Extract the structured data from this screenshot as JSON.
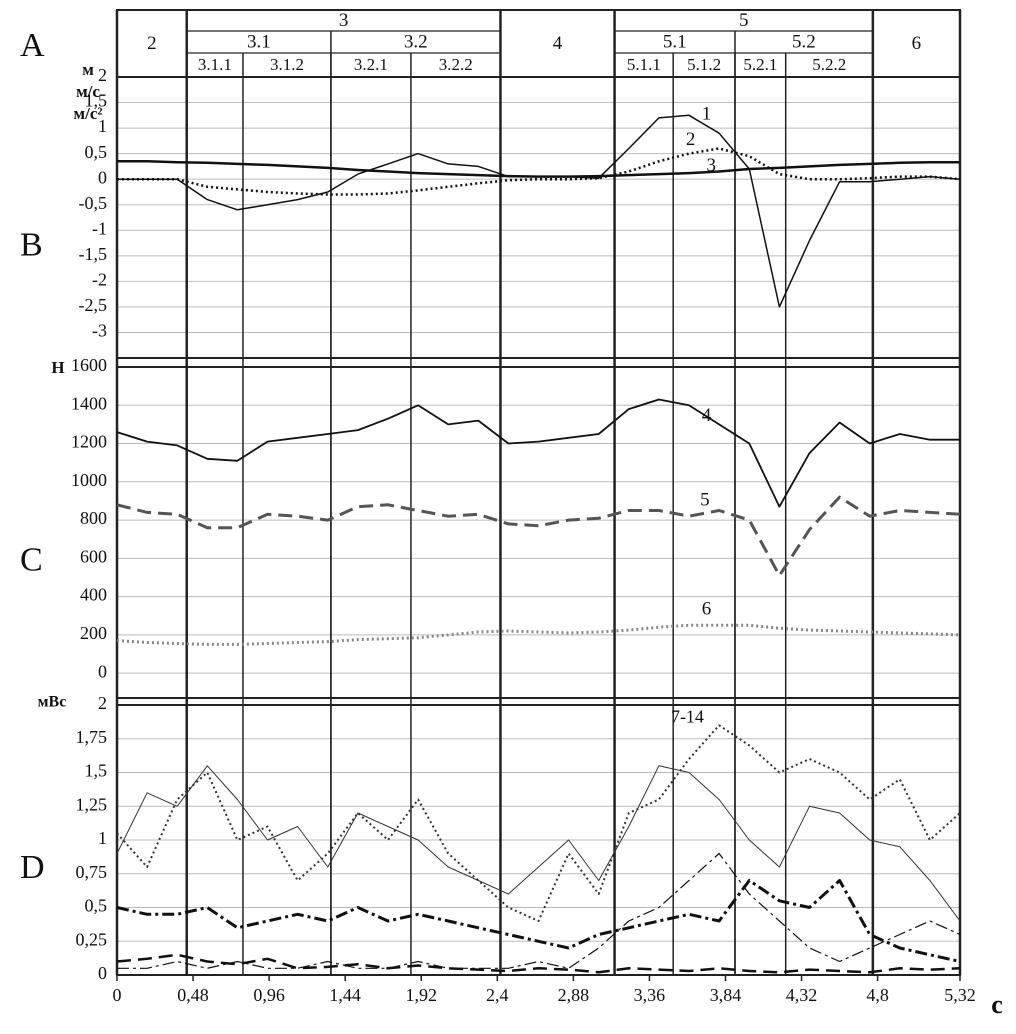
{
  "header": {
    "panel": "A",
    "phases": [
      {
        "label": "2",
        "start": 0,
        "end": 0.44
      },
      {
        "label": "3",
        "start": 0.44,
        "end": 2.42,
        "children": [
          {
            "label": "3.1",
            "start": 0.44,
            "end": 1.35,
            "children": [
              {
                "label": "3.1.1",
                "start": 0.44,
                "end": 0.795
              },
              {
                "label": "3.1.2",
                "start": 0.795,
                "end": 1.35
              }
            ]
          },
          {
            "label": "3.2",
            "start": 1.35,
            "end": 2.42,
            "children": [
              {
                "label": "3.2.1",
                "start": 1.35,
                "end": 1.855
              },
              {
                "label": "3.2.2",
                "start": 1.855,
                "end": 2.42
              }
            ]
          }
        ]
      },
      {
        "label": "4",
        "start": 2.42,
        "end": 3.14
      },
      {
        "label": "5",
        "start": 3.14,
        "end": 4.77,
        "children": [
          {
            "label": "5.1",
            "start": 3.14,
            "end": 3.9,
            "children": [
              {
                "label": "5.1.1",
                "start": 3.14,
                "end": 3.51
              },
              {
                "label": "5.1.2",
                "start": 3.51,
                "end": 3.9
              }
            ]
          },
          {
            "label": "5.2",
            "start": 3.9,
            "end": 4.77,
            "children": [
              {
                "label": "5.2.1",
                "start": 3.9,
                "end": 4.22
              },
              {
                "label": "5.2.2",
                "start": 4.22,
                "end": 4.77
              }
            ]
          }
        ]
      },
      {
        "label": "6",
        "start": 4.77,
        "end": 5.32
      }
    ]
  },
  "chart_data": [
    {
      "type": "line",
      "panel": "B",
      "ylabel": [
        "м",
        "м/с",
        "м/с²"
      ],
      "xlim": [
        0,
        5.32
      ],
      "ylim": [
        -3.5,
        2
      ],
      "grid": true,
      "yticks": [
        {
          "value": -3,
          "label": "-3"
        },
        {
          "value": -2.5,
          "label": "-2,5"
        },
        {
          "value": -2,
          "label": "-2"
        },
        {
          "value": -1.5,
          "label": "-1,5"
        },
        {
          "value": -1,
          "label": "-1"
        },
        {
          "value": -0.5,
          "label": "-0,5"
        },
        0,
        {
          "value": 0.5,
          "label": "0,5"
        },
        1,
        {
          "value": 1.5,
          "label": "1,5"
        },
        2
      ],
      "x": [
        0,
        0.19,
        0.38,
        0.57,
        0.76,
        0.95,
        1.14,
        1.33,
        1.52,
        1.71,
        1.9,
        2.09,
        2.28,
        2.47,
        2.66,
        2.85,
        3.04,
        3.23,
        3.42,
        3.61,
        3.8,
        3.99,
        4.18,
        4.37,
        4.56,
        4.75,
        4.94,
        5.13,
        5.32
      ],
      "series": [
        {
          "name": "1",
          "color": "#111111",
          "style": "solid",
          "width": 1.5,
          "label_at": [
            3.72,
            1.25
          ],
          "values": [
            0,
            0,
            0,
            -0.4,
            -0.6,
            -0.5,
            -0.4,
            -0.25,
            0.1,
            0.3,
            0.5,
            0.3,
            0.25,
            0.05,
            0.05,
            0.05,
            0.02,
            0.6,
            1.2,
            1.25,
            0.9,
            0.2,
            -2.5,
            -1.2,
            -0.05,
            -0.05,
            0,
            0.05,
            0
          ]
        },
        {
          "name": "2",
          "color": "#111111",
          "style": "dotted",
          "width": 2.5,
          "label_at": [
            3.62,
            0.75
          ],
          "values": [
            0,
            0,
            0,
            -0.15,
            -0.2,
            -0.25,
            -0.28,
            -0.3,
            -0.3,
            -0.28,
            -0.22,
            -0.15,
            -0.08,
            -0.02,
            0,
            0,
            0.02,
            0.15,
            0.35,
            0.5,
            0.6,
            0.45,
            0.1,
            0,
            0,
            0.02,
            0.05,
            0.05,
            0
          ]
        },
        {
          "name": "3",
          "color": "#111111",
          "style": "solid",
          "width": 2.5,
          "label_at": [
            3.75,
            0.25
          ],
          "values": [
            0.35,
            0.35,
            0.33,
            0.32,
            0.3,
            0.28,
            0.25,
            0.22,
            0.18,
            0.15,
            0.12,
            0.1,
            0.08,
            0.06,
            0.05,
            0.05,
            0.06,
            0.08,
            0.1,
            0.12,
            0.15,
            0.2,
            0.22,
            0.25,
            0.28,
            0.3,
            0.32,
            0.33,
            0.33
          ]
        }
      ]
    },
    {
      "type": "line",
      "panel": "C",
      "ylabel": [
        "Н"
      ],
      "xlim": [
        0,
        5.32
      ],
      "ylim": [
        -130,
        1600
      ],
      "grid": true,
      "yticks": [
        0,
        200,
        400,
        600,
        800,
        1000,
        1200,
        1400,
        1600
      ],
      "x": [
        0,
        0.19,
        0.38,
        0.57,
        0.76,
        0.95,
        1.14,
        1.33,
        1.52,
        1.71,
        1.9,
        2.09,
        2.28,
        2.47,
        2.66,
        2.85,
        3.04,
        3.23,
        3.42,
        3.61,
        3.8,
        3.99,
        4.18,
        4.37,
        4.56,
        4.75,
        4.94,
        5.13,
        5.32
      ],
      "series": [
        {
          "name": "4",
          "color": "#111111",
          "style": "solid",
          "width": 1.8,
          "label_at": [
            3.72,
            1340
          ],
          "values": [
            1260,
            1210,
            1190,
            1120,
            1110,
            1210,
            1230,
            1250,
            1270,
            1330,
            1400,
            1300,
            1320,
            1200,
            1210,
            1230,
            1250,
            1380,
            1430,
            1400,
            1300,
            1200,
            870,
            1150,
            1310,
            1200,
            1250,
            1220,
            1220
          ]
        },
        {
          "name": "5",
          "color": "#555555",
          "style": "dashed",
          "width": 3,
          "label_at": [
            3.71,
            900
          ],
          "values": [
            880,
            840,
            830,
            760,
            760,
            830,
            820,
            800,
            870,
            880,
            850,
            820,
            830,
            780,
            770,
            800,
            810,
            850,
            850,
            820,
            850,
            800,
            510,
            750,
            920,
            820,
            850,
            840,
            830
          ]
        },
        {
          "name": "6",
          "color": "#888888",
          "style": "dotted",
          "width": 3,
          "label_at": [
            3.72,
            330
          ],
          "values": [
            170,
            160,
            155,
            150,
            150,
            155,
            160,
            165,
            175,
            180,
            185,
            200,
            215,
            220,
            215,
            210,
            215,
            225,
            240,
            250,
            250,
            250,
            235,
            225,
            220,
            215,
            210,
            205,
            200
          ]
        }
      ]
    },
    {
      "type": "line",
      "panel": "D",
      "ylabel": [
        "мВс"
      ],
      "xlabel": "с",
      "annotation": "7-14",
      "xlim": [
        0,
        5.32
      ],
      "ylim": [
        0,
        2
      ],
      "grid": true,
      "yticks": [
        0,
        {
          "value": 0.25,
          "label": "0,25"
        },
        {
          "value": 0.5,
          "label": "0,5"
        },
        {
          "value": 0.75,
          "label": "0,75"
        },
        1,
        {
          "value": 1.25,
          "label": "1,25"
        },
        {
          "value": 1.5,
          "label": "1,5"
        },
        {
          "value": 1.75,
          "label": "1,75"
        },
        2
      ],
      "xticks": [
        0,
        {
          "value": 0.48,
          "label": "0,48"
        },
        {
          "value": 0.96,
          "label": "0,96"
        },
        {
          "value": 1.44,
          "label": "1,44"
        },
        {
          "value": 1.92,
          "label": "1,92"
        },
        {
          "value": 2.4,
          "label": "2,4"
        },
        {
          "value": 2.88,
          "label": "2,88"
        },
        {
          "value": 3.36,
          "label": "3,36"
        },
        {
          "value": 3.84,
          "label": "3,84"
        },
        {
          "value": 4.32,
          "label": "4,32"
        },
        {
          "value": 4.8,
          "label": "4,8"
        },
        {
          "value": 5.32,
          "label": "5,32"
        }
      ],
      "x": [
        0,
        0.19,
        0.38,
        0.57,
        0.76,
        0.95,
        1.14,
        1.33,
        1.52,
        1.71,
        1.9,
        2.09,
        2.28,
        2.47,
        2.66,
        2.85,
        3.04,
        3.23,
        3.42,
        3.61,
        3.8,
        3.99,
        4.18,
        4.37,
        4.56,
        4.75,
        4.94,
        5.13,
        5.32
      ],
      "series": [
        {
          "color": "#333333",
          "style": "solid",
          "width": 1,
          "values": [
            0.9,
            1.35,
            1.25,
            1.55,
            1.3,
            1.0,
            1.1,
            0.8,
            1.2,
            1.1,
            1.0,
            0.8,
            0.7,
            0.6,
            0.8,
            1.0,
            0.7,
            1.1,
            1.55,
            1.5,
            1.3,
            1.0,
            0.8,
            1.25,
            1.2,
            1.0,
            0.95,
            0.7,
            0.4
          ]
        },
        {
          "color": "#333333",
          "style": "dotted",
          "width": 2,
          "values": [
            1.05,
            0.8,
            1.3,
            1.5,
            1.0,
            1.1,
            0.7,
            0.9,
            1.2,
            1.0,
            1.3,
            0.9,
            0.7,
            0.5,
            0.4,
            0.9,
            0.6,
            1.2,
            1.3,
            1.6,
            1.85,
            1.7,
            1.5,
            1.6,
            1.5,
            1.3,
            1.45,
            1.0,
            1.2
          ]
        },
        {
          "color": "#111111",
          "style": "dashdot",
          "width": 3,
          "values": [
            0.5,
            0.45,
            0.45,
            0.5,
            0.35,
            0.4,
            0.45,
            0.4,
            0.5,
            0.4,
            0.45,
            0.4,
            0.35,
            0.3,
            0.25,
            0.2,
            0.3,
            0.35,
            0.4,
            0.45,
            0.4,
            0.7,
            0.55,
            0.5,
            0.7,
            0.3,
            0.2,
            0.15,
            0.1
          ]
        },
        {
          "color": "#111111",
          "style": "dashdot",
          "width": 1.2,
          "values": [
            0.05,
            0.05,
            0.1,
            0.05,
            0.1,
            0.05,
            0.05,
            0.1,
            0.05,
            0.05,
            0.1,
            0.05,
            0.05,
            0.05,
            0.1,
            0.05,
            0.2,
            0.4,
            0.5,
            0.7,
            0.9,
            0.6,
            0.4,
            0.2,
            0.1,
            0.2,
            0.3,
            0.4,
            0.3
          ]
        },
        {
          "color": "#111111",
          "style": "dashed",
          "width": 2.5,
          "values": [
            0.1,
            0.12,
            0.15,
            0.1,
            0.08,
            0.12,
            0.05,
            0.06,
            0.08,
            0.05,
            0.07,
            0.05,
            0.04,
            0.03,
            0.05,
            0.04,
            0.02,
            0.05,
            0.04,
            0.03,
            0.05,
            0.03,
            0.02,
            0.04,
            0.03,
            0.02,
            0.05,
            0.04,
            0.05
          ]
        }
      ]
    }
  ]
}
